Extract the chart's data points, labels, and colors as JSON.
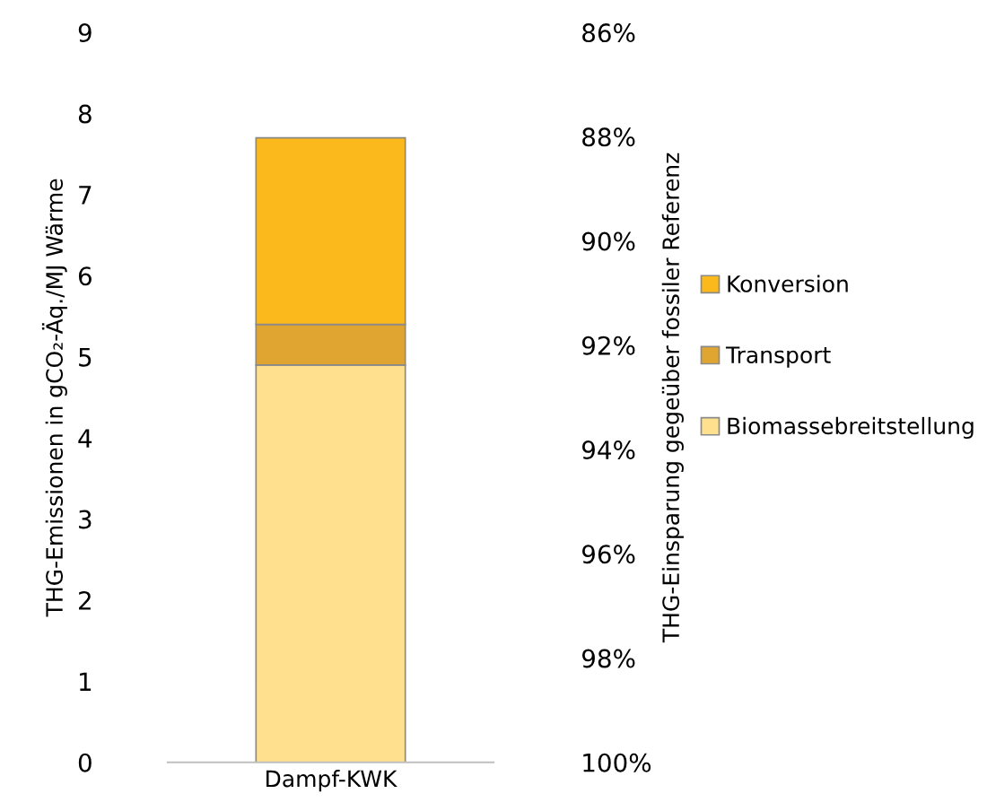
{
  "chart_data": {
    "type": "bar",
    "stacked": true,
    "categories": [
      "Dampf-KWK"
    ],
    "series": [
      {
        "name": "Biomassebreitstellung",
        "color": "#fee08f",
        "values": [
          4.9
        ]
      },
      {
        "name": "Transport",
        "color": "#e0a530",
        "values": [
          0.5
        ]
      },
      {
        "name": "Konversion",
        "color": "#fbb91c",
        "values": [
          2.3
        ]
      }
    ],
    "ylabel": "THG-Emissionen in gCO₂-Äq./MJ Wärme",
    "y2label": "THG-Einsparung gegeüber fossiler Referenz",
    "ylim": [
      0,
      9
    ],
    "yticks": [
      0,
      1,
      2,
      3,
      4,
      5,
      6,
      7,
      8,
      9
    ],
    "y2lim": [
      100,
      86
    ],
    "y2ticks": [
      {
        "value": 100,
        "label": "100%"
      },
      {
        "value": 98,
        "label": "98%"
      },
      {
        "value": 96,
        "label": "96%"
      },
      {
        "value": 94,
        "label": "94%"
      },
      {
        "value": 92,
        "label": "92%"
      },
      {
        "value": 90,
        "label": "90%"
      },
      {
        "value": 88,
        "label": "88%"
      },
      {
        "value": 86,
        "label": "86%"
      }
    ],
    "grid": false,
    "legend": "right"
  }
}
